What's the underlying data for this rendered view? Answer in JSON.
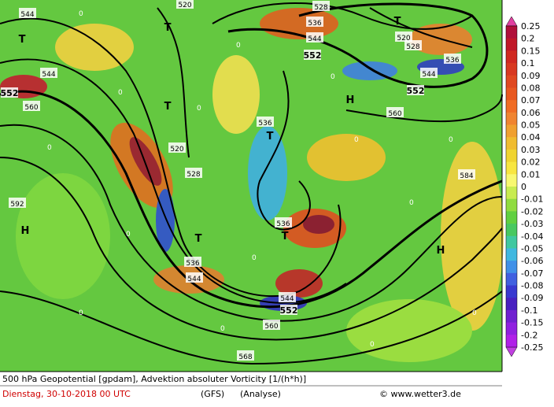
{
  "map": {
    "contour_labels": [
      "544",
      "520",
      "528",
      "536",
      "544",
      "552",
      "T",
      "520",
      "528",
      "536",
      "544",
      "552",
      "H",
      "560",
      "T",
      "T",
      "552",
      "544",
      "560",
      "T",
      "520",
      "528",
      "536",
      "T",
      "592",
      "H",
      "T",
      "536",
      "544",
      "536",
      "T",
      "544",
      "552",
      "560",
      "568",
      "584",
      "H"
    ],
    "zero_label": "0"
  },
  "colorbar": {
    "labels": [
      "0.25",
      "0.2",
      "0.15",
      "0.1",
      "0.09",
      "0.08",
      "0.07",
      "0.06",
      "0.05",
      "0.04",
      "0.03",
      "0.02",
      "0.01",
      "0",
      "-0.01",
      "-0.02",
      "-0.03",
      "-0.04",
      "-0.05",
      "-0.06",
      "-0.07",
      "-0.08",
      "-0.09",
      "-0.1",
      "-0.15",
      "-0.2",
      "-0.25"
    ],
    "colors": [
      "#b0103a",
      "#c01828",
      "#d02820",
      "#d83820",
      "#e04820",
      "#e85820",
      "#f06c24",
      "#f08430",
      "#f0a030",
      "#f0bc30",
      "#f0d430",
      "#f8e640",
      "#f8f870",
      "#c8ec50",
      "#90dc40",
      "#60d040",
      "#48c860",
      "#40c8a0",
      "#40b8e0",
      "#4090e8",
      "#4060e0",
      "#3838d0",
      "#4820c0",
      "#7020d0",
      "#9020e0",
      "#b020e8"
    ],
    "top_color": "#e040a0",
    "bottom_color": "#c040e0"
  },
  "footer": {
    "line1": "500 hPa Geopotential [gpdam], Advektion absoluter Vorticity [1/(h*h)]",
    "date": "Dienstag, 30-10-2018  00 UTC",
    "model": "(GFS)",
    "run": "(Analyse)",
    "credit": "© www.wetter3.de"
  }
}
